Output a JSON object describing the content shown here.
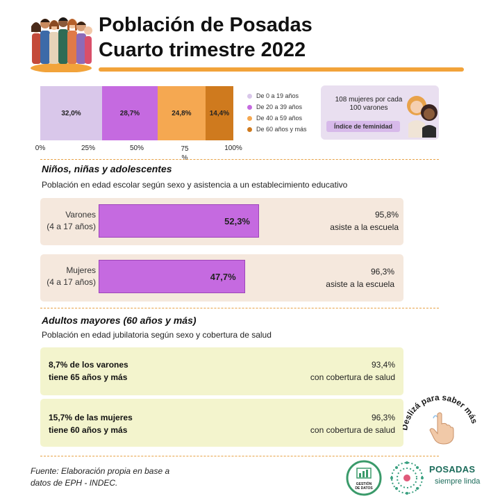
{
  "header": {
    "title_line1": "Población de Posadas",
    "title_line2": "Cuarto trimestre 2022"
  },
  "chart_data": {
    "type": "bar",
    "stacked": true,
    "categories": [
      "De 0 a 19 años",
      "De 20 a 39 años",
      "De 40 a 59 años",
      "De 60 años y más"
    ],
    "values": [
      32.0,
      28.7,
      24.8,
      14.4
    ],
    "labels": [
      "32,0%",
      "28,7%",
      "24,8%",
      "14,4%"
    ],
    "colors": [
      "#d9c7ea",
      "#c56ae0",
      "#f5a851",
      "#cf7a1e"
    ],
    "ticks": [
      "0%",
      "25%",
      "50%",
      "75\n%",
      "100%"
    ],
    "xlim": [
      0,
      100
    ],
    "legend": "right"
  },
  "femininity": {
    "text": "108  mujeres por cada 100 varones",
    "label": "Índice de feminidad"
  },
  "children": {
    "title": "Niños, niñas y adolescentes",
    "subtitle": "Población en edad escolar según sexo y asistencia a un establecimiento educativo",
    "rows": [
      {
        "label1": "Varones",
        "label2": "(4 a 17 años)",
        "bar_label": "52,3%",
        "share": 52.3,
        "attend_pct": "95,8%",
        "attend_text": "asiste a la escuela"
      },
      {
        "label1": "Mujeres",
        "label2": "(4 a 17 años)",
        "bar_label": "47,7%",
        "share": 47.7,
        "attend_pct": "96,3%",
        "attend_text": "asiste a la escuela"
      }
    ]
  },
  "seniors": {
    "title": "Adultos mayores (60 años y más)",
    "subtitle": "Población en edad jubilatoria según sexo y cobertura de salud",
    "rows": [
      {
        "left1": "8,7% de los varones",
        "left2": "tiene 65 años y más",
        "pct": "93,4%",
        "text": "con cobertura de salud"
      },
      {
        "left1": "15,7% de las mujeres",
        "left2": "tiene 60 años y más",
        "pct": "96,3%",
        "text": "con cobertura de salud"
      }
    ]
  },
  "swipe": {
    "text": "Deslizá para saber más"
  },
  "footer": {
    "source_line1": "Fuente: Elaboración propia en base a",
    "source_line2": "datos de EPH - INDEC.",
    "logo1_line1": "GESTIÓN",
    "logo1_line2": "DE DATOS",
    "brand": "POSADAS",
    "tagline": "siempre linda"
  }
}
